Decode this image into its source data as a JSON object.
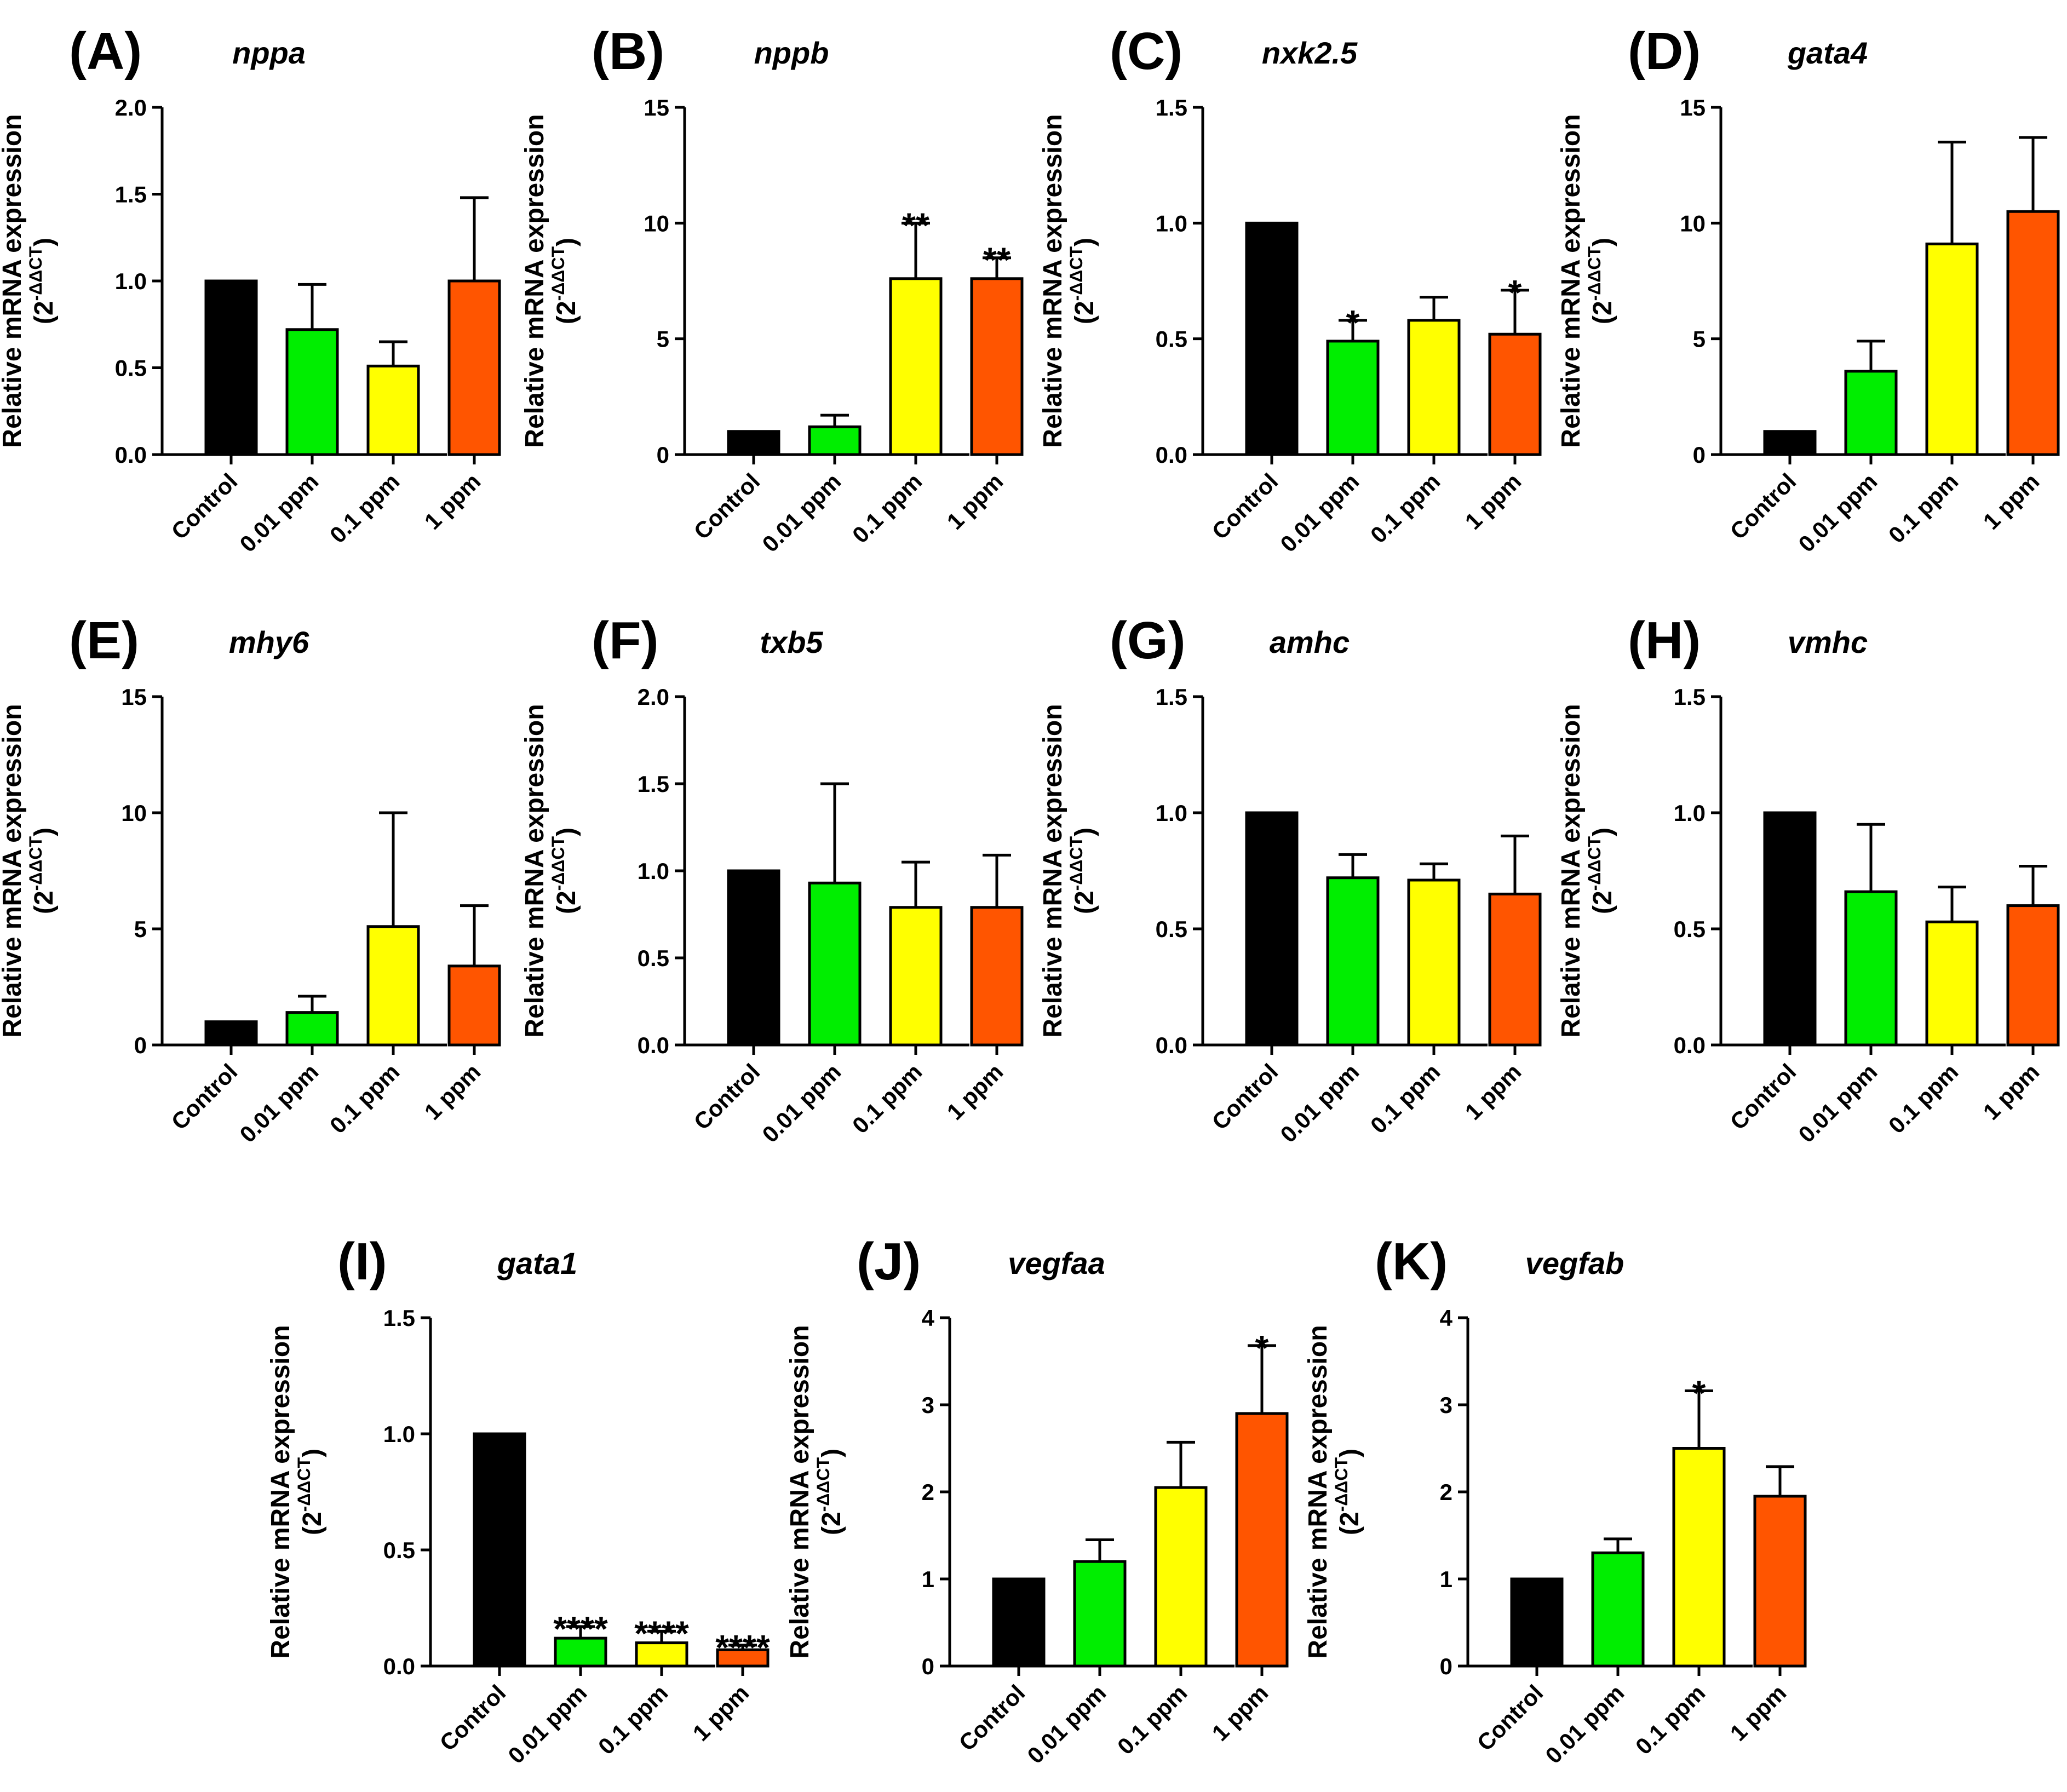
{
  "figure": {
    "ylabel_line1": "Relative mRNA expression",
    "ylabel_line2_base": "(2",
    "ylabel_line2_sup": "-ΔΔCT",
    "ylabel_line2_end": ")",
    "categories": [
      "Control",
      "0.01 ppm",
      "0.1 ppm",
      "1 ppm"
    ],
    "bar_colors": [
      "#000000",
      "#00ee00",
      "#ffff00",
      "#ff5500"
    ]
  },
  "chart_data": [
    {
      "type": "bar",
      "panel": "(A)",
      "title": "nppa",
      "categories": [
        "Control",
        "0.01 ppm",
        "0.1 ppm",
        "1 ppm"
      ],
      "values": [
        1.0,
        0.72,
        0.51,
        1.0
      ],
      "errors": [
        0,
        0.26,
        0.14,
        0.48
      ],
      "significance": [
        "",
        "",
        "",
        ""
      ],
      "ylim": [
        0,
        2.0
      ],
      "yticks": [
        "0.0",
        "0.5",
        "1.0",
        "1.5",
        "2.0"
      ],
      "ytick_values": [
        0,
        0.5,
        1.0,
        1.5,
        2.0
      ]
    },
    {
      "type": "bar",
      "panel": "(B)",
      "title": "nppb",
      "categories": [
        "Control",
        "0.01 ppm",
        "0.1 ppm",
        "1 ppm"
      ],
      "values": [
        1.0,
        1.2,
        7.6,
        7.6
      ],
      "errors": [
        0,
        0.5,
        2.4,
        0.9
      ],
      "significance": [
        "",
        "",
        "**",
        "**"
      ],
      "ylim": [
        0,
        15
      ],
      "yticks": [
        "0",
        "5",
        "10",
        "15"
      ],
      "ytick_values": [
        0,
        5,
        10,
        15
      ]
    },
    {
      "type": "bar",
      "panel": "(C)",
      "title": "nxk2.5",
      "categories": [
        "Control",
        "0.01 ppm",
        "0.1 ppm",
        "1 ppm"
      ],
      "values": [
        1.0,
        0.49,
        0.58,
        0.52
      ],
      "errors": [
        0,
        0.09,
        0.1,
        0.19
      ],
      "significance": [
        "",
        "*",
        "",
        "*"
      ],
      "ylim": [
        0,
        1.5
      ],
      "yticks": [
        "0.0",
        "0.5",
        "1.0",
        "1.5"
      ],
      "ytick_values": [
        0,
        0.5,
        1.0,
        1.5
      ]
    },
    {
      "type": "bar",
      "panel": "(D)",
      "title": "gata4",
      "categories": [
        "Control",
        "0.01 ppm",
        "0.1 ppm",
        "1 ppm"
      ],
      "values": [
        1.0,
        3.6,
        9.1,
        10.5
      ],
      "errors": [
        0,
        1.3,
        4.4,
        3.2
      ],
      "significance": [
        "",
        "",
        "",
        ""
      ],
      "ylim": [
        0,
        15
      ],
      "yticks": [
        "0",
        "5",
        "10",
        "15"
      ],
      "ytick_values": [
        0,
        5,
        10,
        15
      ]
    },
    {
      "type": "bar",
      "panel": "(E)",
      "title": "mhy6",
      "categories": [
        "Control",
        "0.01 ppm",
        "0.1 ppm",
        "1 ppm"
      ],
      "values": [
        1.0,
        1.4,
        5.1,
        3.4
      ],
      "errors": [
        0,
        0.7,
        4.9,
        2.6
      ],
      "significance": [
        "",
        "",
        "",
        ""
      ],
      "ylim": [
        0,
        15
      ],
      "yticks": [
        "0",
        "5",
        "10",
        "15"
      ],
      "ytick_values": [
        0,
        5,
        10,
        15
      ]
    },
    {
      "type": "bar",
      "panel": "(F)",
      "title": "txb5",
      "categories": [
        "Control",
        "0.01 ppm",
        "0.1 ppm",
        "1 ppm"
      ],
      "values": [
        1.0,
        0.93,
        0.79,
        0.79
      ],
      "errors": [
        0,
        0.57,
        0.26,
        0.3
      ],
      "significance": [
        "",
        "",
        "",
        ""
      ],
      "ylim": [
        0,
        2.0
      ],
      "yticks": [
        "0.0",
        "0.5",
        "1.0",
        "1.5",
        "2.0"
      ],
      "ytick_values": [
        0,
        0.5,
        1.0,
        1.5,
        2.0
      ]
    },
    {
      "type": "bar",
      "panel": "(G)",
      "title": "amhc",
      "categories": [
        "Control",
        "0.01 ppm",
        "0.1 ppm",
        "1 ppm"
      ],
      "values": [
        1.0,
        0.72,
        0.71,
        0.65
      ],
      "errors": [
        0,
        0.1,
        0.07,
        0.25
      ],
      "significance": [
        "",
        "",
        "",
        ""
      ],
      "ylim": [
        0,
        1.5
      ],
      "yticks": [
        "0.0",
        "0.5",
        "1.0",
        "1.5"
      ],
      "ytick_values": [
        0,
        0.5,
        1.0,
        1.5
      ]
    },
    {
      "type": "bar",
      "panel": "(H)",
      "title": "vmhc",
      "categories": [
        "Control",
        "0.01 ppm",
        "0.1 ppm",
        "1 ppm"
      ],
      "values": [
        1.0,
        0.66,
        0.53,
        0.6
      ],
      "errors": [
        0,
        0.29,
        0.15,
        0.17
      ],
      "significance": [
        "",
        "",
        "",
        ""
      ],
      "ylim": [
        0,
        1.5
      ],
      "yticks": [
        "0.0",
        "0.5",
        "1.0",
        "1.5"
      ],
      "ytick_values": [
        0,
        0.5,
        1.0,
        1.5
      ]
    },
    {
      "type": "bar",
      "panel": "(I)",
      "title": "gata1",
      "categories": [
        "Control",
        "0.01 ppm",
        "0.1 ppm",
        "1 ppm"
      ],
      "values": [
        1.0,
        0.12,
        0.1,
        0.07
      ],
      "errors": [
        0,
        0.05,
        0.05,
        0.02
      ],
      "significance": [
        "",
        "****",
        "****",
        "****"
      ],
      "ylim": [
        0,
        1.5
      ],
      "yticks": [
        "0.0",
        "0.5",
        "1.0",
        "1.5"
      ],
      "ytick_values": [
        0,
        0.5,
        1.0,
        1.5
      ]
    },
    {
      "type": "bar",
      "panel": "(J)",
      "title": "vegfaa",
      "categories": [
        "Control",
        "0.01 ppm",
        "0.1 ppm",
        "1 ppm"
      ],
      "values": [
        1.0,
        1.2,
        2.05,
        2.9
      ],
      "errors": [
        0,
        0.25,
        0.52,
        0.78
      ],
      "significance": [
        "",
        "",
        "",
        "*"
      ],
      "ylim": [
        0,
        4
      ],
      "yticks": [
        "0",
        "1",
        "2",
        "3",
        "4"
      ],
      "ytick_values": [
        0,
        1,
        2,
        3,
        4
      ]
    },
    {
      "type": "bar",
      "panel": "(K)",
      "title": "vegfab",
      "categories": [
        "Control",
        "0.01 ppm",
        "0.1 ppm",
        "1 ppm"
      ],
      "values": [
        1.0,
        1.3,
        2.5,
        1.95
      ],
      "errors": [
        0,
        0.16,
        0.66,
        0.34
      ],
      "significance": [
        "",
        "",
        "*",
        ""
      ],
      "ylim": [
        0,
        4
      ],
      "yticks": [
        "0",
        "1",
        "2",
        "3",
        "4"
      ],
      "ytick_values": [
        0,
        1,
        2,
        3,
        4
      ]
    }
  ]
}
